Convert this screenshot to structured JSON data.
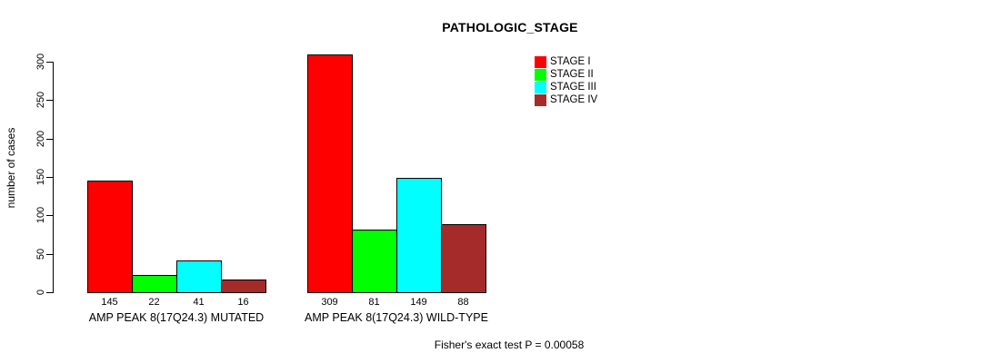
{
  "title": "PATHOLOGIC_STAGE",
  "y_axis": {
    "label": "number of cases"
  },
  "footer": "Fisher's exact test P = 0.00058",
  "legend": {
    "items": [
      {
        "label": "STAGE I",
        "color": "#ff0000"
      },
      {
        "label": "STAGE II",
        "color": "#00ff00"
      },
      {
        "label": "STAGE III",
        "color": "#00ffff"
      },
      {
        "label": "STAGE IV",
        "color": "#a52a2a"
      }
    ]
  },
  "chart_data": {
    "type": "bar",
    "title": "PATHOLOGIC_STAGE",
    "ylabel": "number of cases",
    "xlabel": "",
    "categories": [
      "AMP PEAK 8(17Q24.3) MUTATED",
      "AMP PEAK 8(17Q24.3) WILD-TYPE"
    ],
    "series": [
      {
        "name": "STAGE I",
        "color": "#ff0000",
        "values": [
          145,
          309
        ]
      },
      {
        "name": "STAGE II",
        "color": "#00ff00",
        "values": [
          22,
          81
        ]
      },
      {
        "name": "STAGE III",
        "color": "#00ffff",
        "values": [
          41,
          149
        ]
      },
      {
        "name": "STAGE IV",
        "color": "#a52a2a",
        "values": [
          16,
          88
        ]
      }
    ],
    "ylim": [
      0,
      300
    ],
    "yticks": [
      0,
      50,
      100,
      150,
      200,
      250,
      300
    ],
    "bar_value_labels": true,
    "legend_position": "top-right",
    "grid": false,
    "annotation": "Fisher's exact test P = 0.00058"
  }
}
